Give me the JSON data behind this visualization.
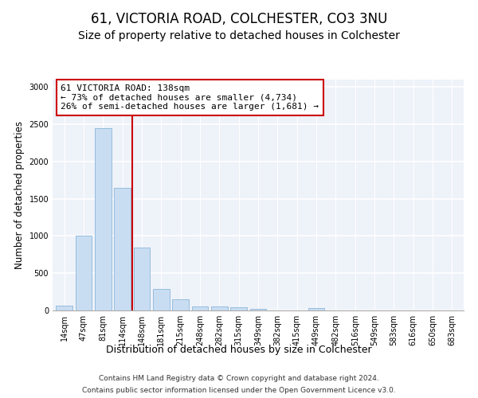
{
  "title1": "61, VICTORIA ROAD, COLCHESTER, CO3 3NU",
  "title2": "Size of property relative to detached houses in Colchester",
  "xlabel": "Distribution of detached houses by size in Colchester",
  "ylabel": "Number of detached properties",
  "bar_labels": [
    "14sqm",
    "47sqm",
    "81sqm",
    "114sqm",
    "148sqm",
    "181sqm",
    "215sqm",
    "248sqm",
    "282sqm",
    "315sqm",
    "349sqm",
    "382sqm",
    "415sqm",
    "449sqm",
    "482sqm",
    "516sqm",
    "549sqm",
    "583sqm",
    "616sqm",
    "650sqm",
    "683sqm"
  ],
  "bar_values": [
    60,
    1000,
    2450,
    1650,
    840,
    290,
    145,
    55,
    50,
    45,
    20,
    5,
    0,
    30,
    5,
    0,
    0,
    0,
    0,
    0,
    0
  ],
  "bar_color": "#c9ddf2",
  "bar_edge_color": "#7aadd4",
  "vline_color": "#cc0000",
  "annotation_text": "61 VICTORIA ROAD: 138sqm\n← 73% of detached houses are smaller (4,734)\n26% of semi-detached houses are larger (1,681) →",
  "annotation_box_color": "#cc0000",
  "ylim": [
    0,
    3100
  ],
  "yticks": [
    0,
    500,
    1000,
    1500,
    2000,
    2500,
    3000
  ],
  "footer1": "Contains HM Land Registry data © Crown copyright and database right 2024.",
  "footer2": "Contains public sector information licensed under the Open Government Licence v3.0.",
  "bg_color": "#eef2f9",
  "grid_color": "#ffffff",
  "title_fontsize": 12,
  "subtitle_fontsize": 10,
  "axis_label_fontsize": 8.5,
  "tick_fontsize": 7,
  "annotation_fontsize": 8,
  "footer_fontsize": 6.5
}
